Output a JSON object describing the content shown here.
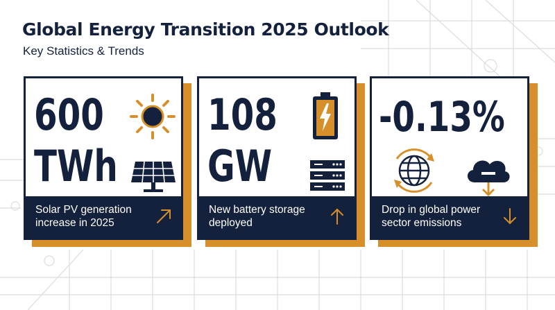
{
  "header": {
    "title": "Global Energy Transition 2025 Outlook",
    "subtitle": "Key Statistics & Trends"
  },
  "cards": [
    {
      "value": "600",
      "unit": "TWh",
      "description": "Solar PV generation increase in 2025",
      "icons": [
        "sun-icon",
        "solar-panel-icon"
      ],
      "trend": "up-right"
    },
    {
      "value": "108",
      "unit": "GW",
      "description": "New battery storage deployed",
      "icons": [
        "battery-charging-icon",
        "server-rack-icon"
      ],
      "trend": "up"
    },
    {
      "value": "-0.13%",
      "unit": "",
      "description": "Drop in global power sector emissions",
      "icons": [
        "globe-cycle-icon",
        "cloud-download-icon"
      ],
      "trend": "down"
    }
  ],
  "colors": {
    "navy": "#14213d",
    "orange": "#d68f2a",
    "background": "#ffffff",
    "line": "#d9d9d9"
  }
}
